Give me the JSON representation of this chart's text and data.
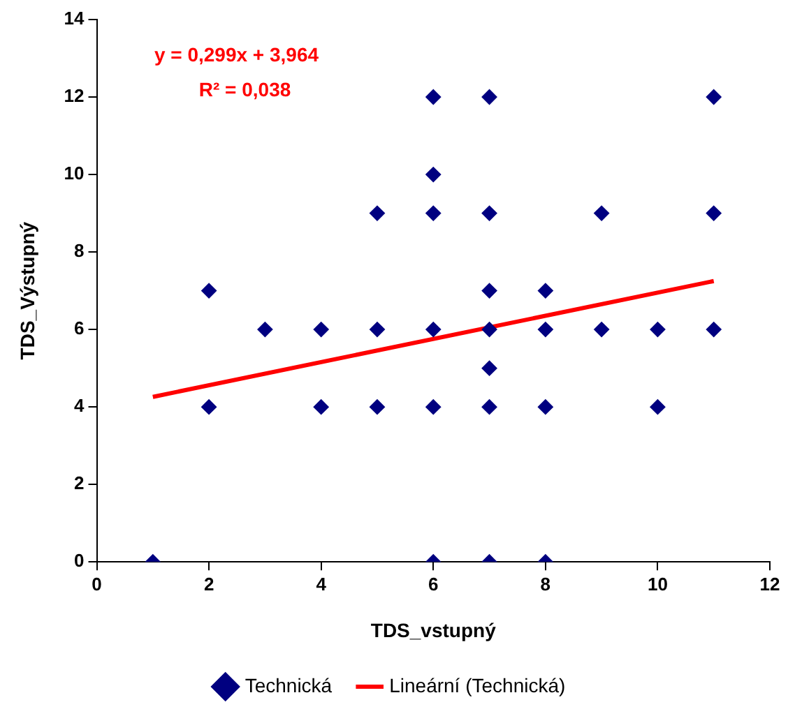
{
  "chart_data": {
    "type": "scatter",
    "xlabel": "TDS_vstupný",
    "ylabel": "TDS_Výstupný",
    "xlim": [
      0,
      12
    ],
    "xticks": [
      0,
      2,
      4,
      6,
      8,
      10,
      12
    ],
    "ylim": [
      0,
      14
    ],
    "yticks": [
      0,
      2,
      4,
      6,
      8,
      10,
      12,
      14
    ],
    "grid": false,
    "legend": "bottom",
    "marker": "diamond",
    "annotations": [
      "y = 0,299x + 3,964",
      "R² = 0,038"
    ],
    "series": [
      {
        "name": "Technická",
        "type": "scatter",
        "color": "#000080",
        "x": [
          1,
          2,
          2,
          3,
          4,
          4,
          5,
          5,
          5,
          6,
          6,
          6,
          6,
          6,
          6,
          7,
          7,
          7,
          7,
          7,
          7,
          7,
          8,
          8,
          8,
          8,
          9,
          9,
          10,
          10,
          11,
          11,
          11
        ],
        "values": [
          0,
          7,
          4,
          6,
          6,
          4,
          9,
          6,
          4,
          12,
          10,
          9,
          6,
          4,
          0,
          12,
          9,
          7,
          6,
          5,
          4,
          0,
          7,
          6,
          4,
          0,
          9,
          6,
          6,
          4,
          12,
          9,
          6
        ]
      },
      {
        "name": "Lineární (Technická)",
        "type": "line",
        "marker": "none",
        "line_style": "solid",
        "color": "#ff0000",
        "x": [
          1,
          11
        ],
        "values": [
          4.26,
          7.25
        ]
      }
    ]
  }
}
